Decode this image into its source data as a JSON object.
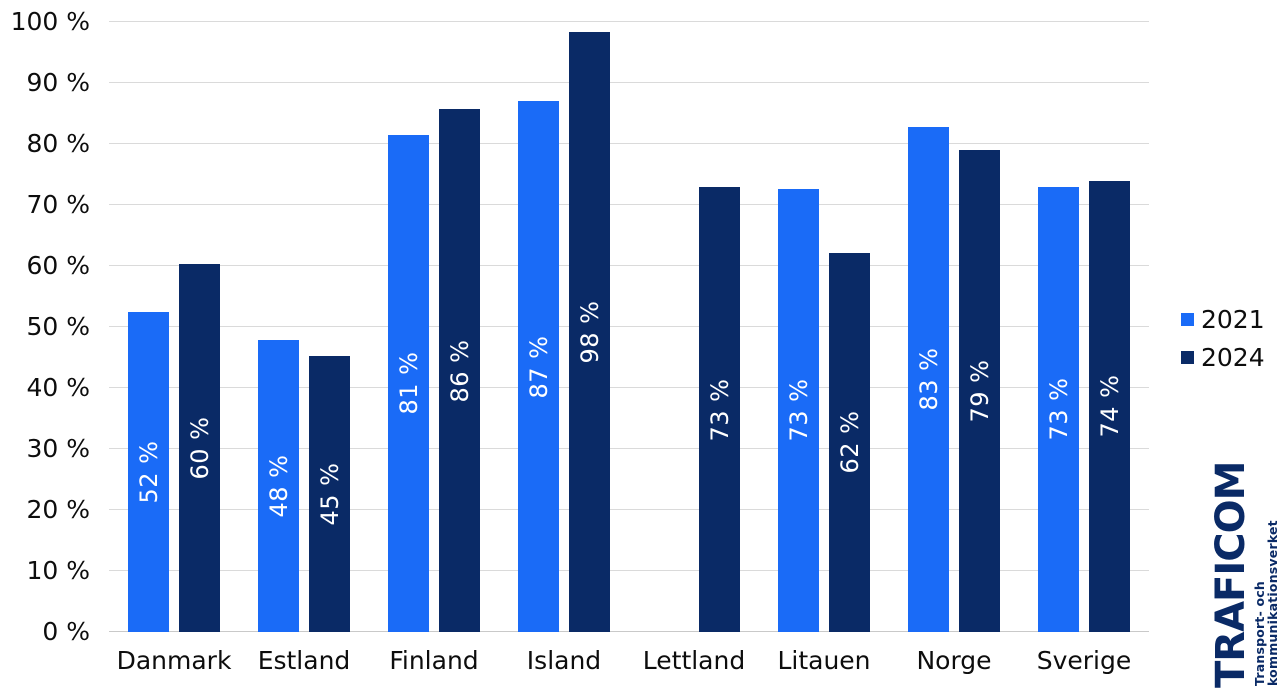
{
  "chart_data": {
    "type": "bar",
    "title": "",
    "categories": [
      "Danmark",
      "Estland",
      "Finland",
      "Island",
      "Lettland",
      "Litauen",
      "Norge",
      "Sverige"
    ],
    "series": [
      {
        "name": "2021",
        "color": "#1a6bf7",
        "values": [
          52.5,
          47.9,
          81.5,
          87.0,
          null,
          72.7,
          82.8,
          73.0
        ],
        "labels": [
          "52 %",
          "48 %",
          "81 %",
          "87 %",
          null,
          "73 %",
          "83 %",
          "73 %"
        ]
      },
      {
        "name": "2024",
        "color": "#0a2a66",
        "values": [
          60.3,
          45.2,
          85.7,
          98.3,
          72.9,
          62.2,
          79.0,
          74.0
        ],
        "labels": [
          "60 %",
          "45 %",
          "86 %",
          "98 %",
          "73 %",
          "62 %",
          "79 %",
          "74 %"
        ]
      }
    ],
    "xlabel": "",
    "ylabel": "",
    "ylim": [
      0,
      100
    ],
    "yticks": [
      0,
      10,
      20,
      30,
      40,
      50,
      60,
      70,
      80,
      90,
      100
    ],
    "ytick_suffix": " %",
    "grid": true,
    "legend_position": "right",
    "bar_label_rotation": -90,
    "bar_label_color": "#ffffff",
    "gridline_color": "#dadada"
  },
  "logo": {
    "name": "TRAFICOM",
    "tagline": "Transport- och kommunikationsverket",
    "color": "#0a2a66"
  }
}
